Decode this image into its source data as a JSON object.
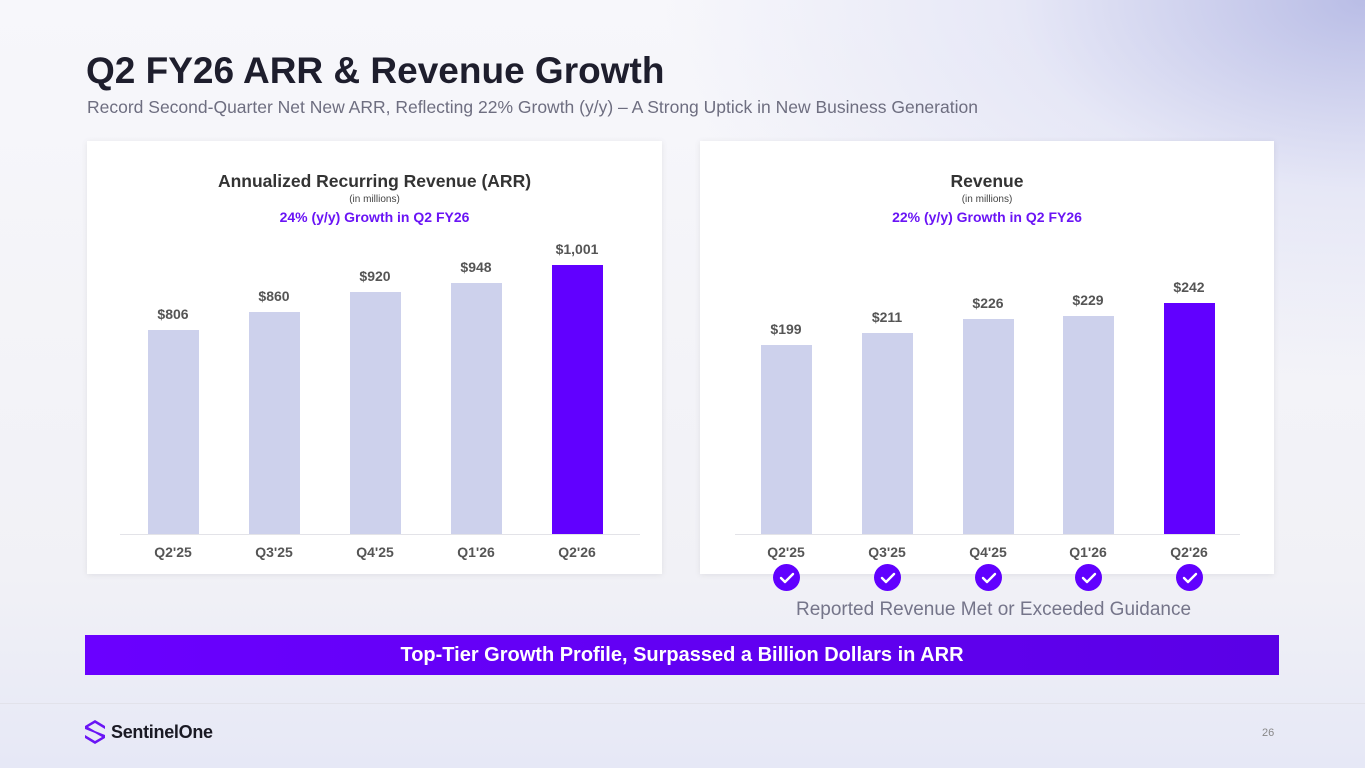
{
  "header": {
    "title": "Q2 FY26 ARR & Revenue Growth",
    "subtitle": "Record Second-Quarter Net New ARR, Reflecting 22% Growth (y/y) – A Strong Uptick in New Business Generation"
  },
  "colors": {
    "highlight_bar": "#6100ff",
    "bar": "#cdd1ec",
    "accent": "#6a14f5"
  },
  "chart_data": [
    {
      "type": "bar",
      "title": "Annualized Recurring Revenue (ARR)",
      "unit_note": "(in millions)",
      "growth_note": "24% (y/y) Growth in Q2 FY26",
      "categories": [
        "Q2'25",
        "Q3'25",
        "Q4'25",
        "Q1'26",
        "Q2'26"
      ],
      "values": [
        806,
        860,
        920,
        948,
        1001
      ],
      "data_labels": [
        "$806",
        "$860",
        "$920",
        "$948",
        "$1,001"
      ],
      "ylim": [
        193,
        1001
      ],
      "grid": false,
      "highlight_index": 4
    },
    {
      "type": "bar",
      "title": "Revenue",
      "unit_note": "(in millions)",
      "growth_note": "22% (y/y) Growth in Q2 FY26",
      "categories": [
        "Q2'25",
        "Q3'25",
        "Q4'25",
        "Q1'26",
        "Q2'26"
      ],
      "values": [
        199,
        211,
        226,
        229,
        242
      ],
      "data_labels": [
        "$199",
        "$211",
        "$226",
        "$229",
        "$242"
      ],
      "ylim": [
        6,
        242
      ],
      "grid": false,
      "highlight_index": 4
    }
  ],
  "guidance": {
    "label": "Reported Revenue Met or Exceeded Guidance",
    "icon": "check-circle-icon",
    "met": [
      true,
      true,
      true,
      true,
      true
    ]
  },
  "banner": "Top-Tier Growth Profile, Surpassed a Billion Dollars in ARR",
  "footer": {
    "logo": "SentinelOne",
    "page": "26"
  }
}
